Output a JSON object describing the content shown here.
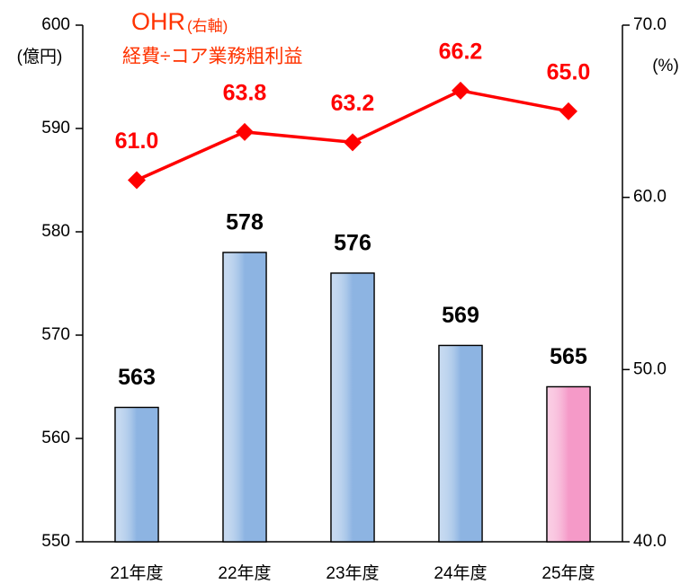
{
  "chart_data": {
    "type": "bar-line",
    "categories": [
      "21年度",
      "22年度",
      "23年度",
      "24年度",
      "25年度"
    ],
    "y_label": "(億円)",
    "y2_label": "(%)",
    "annotation": "(右軸)",
    "subtitle": "経費÷コア業務粗利益",
    "series": [
      {
        "type": "bar",
        "values": [
          563,
          578,
          576,
          569,
          565
        ],
        "colors": [
          "#8db4e2",
          "#8db4e2",
          "#8db4e2",
          "#8db4e2",
          "#f59ac8"
        ]
      },
      {
        "type": "line",
        "name": "OHR",
        "color": "#ff0000",
        "axis": "y2",
        "values": [
          61.0,
          63.8,
          63.2,
          66.2,
          65.0
        ],
        "value_labels": [
          "61.0",
          "63.8",
          "63.2",
          "66.2",
          "65.0"
        ]
      }
    ],
    "ylim": [
      550,
      600
    ],
    "yticks": [
      550,
      560,
      570,
      580,
      590,
      600
    ],
    "y2lim": [
      40,
      70
    ],
    "y2ticks": [
      {
        "value": 40,
        "label": "40.0"
      },
      {
        "value": 50,
        "label": "50.0"
      },
      {
        "value": 60,
        "label": "60.0"
      },
      {
        "value": 70,
        "label": "70.0"
      }
    ]
  }
}
